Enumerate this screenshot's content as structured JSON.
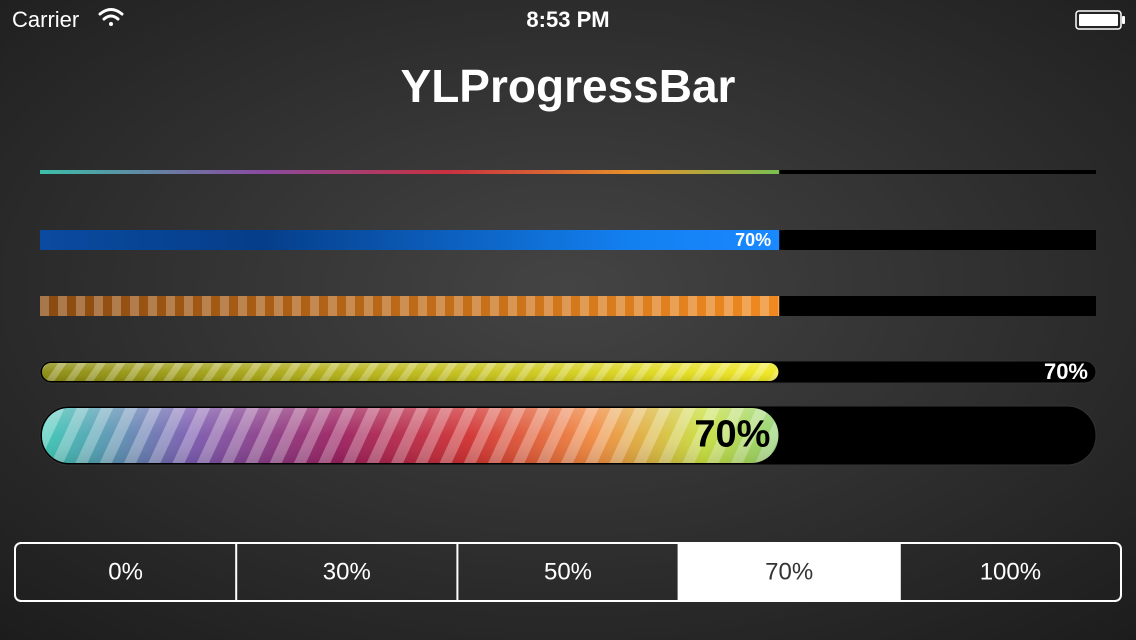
{
  "status_bar": {
    "carrier": "Carrier",
    "time": "8:53 PM"
  },
  "title": "YLProgressBar",
  "progress_bars": [
    {
      "progress": 70
    },
    {
      "progress": 70,
      "label": "70%"
    },
    {
      "progress": 70
    },
    {
      "progress": 70,
      "label": "70%"
    },
    {
      "progress": 70,
      "label": "70%"
    }
  ],
  "segmented_control": {
    "segments": [
      "0%",
      "30%",
      "50%",
      "70%",
      "100%"
    ],
    "selected": 3
  }
}
